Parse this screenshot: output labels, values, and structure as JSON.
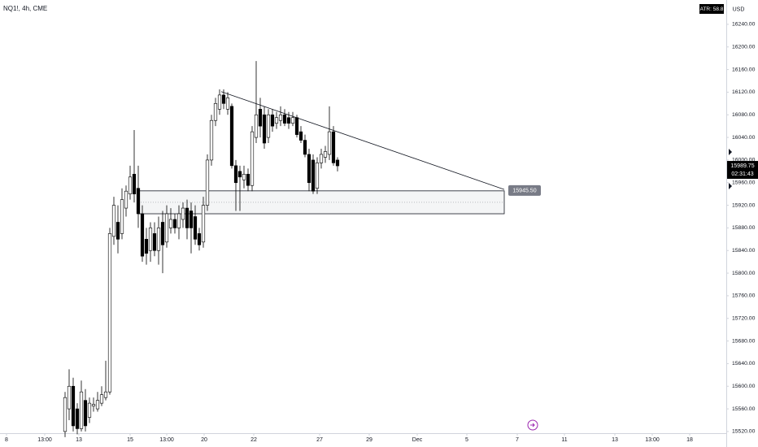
{
  "chart_data": {
    "type": "candlestick",
    "title": "NQ1!, 4h, CME",
    "indicator": "ATR: 58.8",
    "currency": "USD",
    "countdown": "02:31:43",
    "last_price": 15989.75,
    "up_color": "#ffffff",
    "down_color": "#000000",
    "x": [
      16,
      17,
      18,
      19,
      20,
      21,
      22,
      23,
      24,
      25,
      26,
      27,
      28,
      29,
      30,
      31,
      32,
      33,
      34,
      35,
      36,
      37,
      38,
      39,
      40,
      41,
      42,
      43,
      44,
      45,
      46,
      47,
      48,
      49,
      50,
      51,
      52,
      53,
      54,
      55,
      56,
      57,
      58,
      59,
      60,
      61,
      62,
      63,
      64,
      65,
      66,
      67,
      68,
      69,
      70,
      71,
      72,
      73,
      74,
      75,
      76,
      77,
      78,
      79,
      80,
      81,
      82,
      83
    ],
    "open": [
      15520,
      15560,
      15600,
      15560,
      15525,
      15575,
      15545,
      15565,
      15560,
      15570,
      15580,
      15590,
      15865,
      15890,
      15870,
      15915,
      15940,
      15975,
      15950,
      15905,
      15860,
      15840,
      15870,
      15840,
      15890,
      15855,
      15880,
      15895,
      15880,
      15895,
      15915,
      15910,
      15900,
      15870,
      15855,
      15920,
      16000,
      16070,
      16090,
      16115,
      16090,
      16095,
      15990,
      15980,
      15965,
      15975,
      15955,
      16040,
      16090,
      16080,
      16040,
      16080,
      16065,
      16070,
      16080,
      16075,
      16065,
      16075,
      16050,
      16035,
      16010,
      16000,
      15950,
      15995,
      16005,
      16010,
      16050,
      16000
    ],
    "high": [
      15590,
      15630,
      15615,
      15570,
      15610,
      15595,
      15580,
      15580,
      15590,
      15600,
      15645,
      15880,
      15935,
      15920,
      15950,
      15955,
      15990,
      16053,
      15990,
      15920,
      15880,
      15890,
      15890,
      15900,
      15910,
      15920,
      15915,
      15905,
      15920,
      15925,
      15930,
      15925,
      15920,
      15880,
      15935,
      16010,
      16080,
      16110,
      16125,
      16125,
      16120,
      16100,
      16000,
      15990,
      15990,
      15985,
      16060,
      16175,
      16110,
      16095,
      16090,
      16090,
      16085,
      16095,
      16090,
      16085,
      16085,
      16080,
      16060,
      16045,
      16020,
      16010,
      16005,
      16020,
      16025,
      16095,
      16060,
      16005
    ],
    "low": [
      15510,
      15540,
      15520,
      15515,
      15520,
      15520,
      15535,
      15555,
      15555,
      15565,
      15575,
      15585,
      15850,
      15835,
      15860,
      15900,
      15930,
      15925,
      15880,
      15820,
      15815,
      15820,
      15830,
      15815,
      15800,
      15845,
      15870,
      15870,
      15860,
      15880,
      15860,
      15835,
      15850,
      15840,
      15845,
      15910,
      15990,
      16060,
      16080,
      16090,
      16080,
      15985,
      15910,
      15910,
      15950,
      15945,
      15945,
      16030,
      16040,
      16020,
      16030,
      16050,
      16055,
      16060,
      16060,
      16055,
      16060,
      16040,
      16030,
      16005,
      15945,
      15940,
      15940,
      15985,
      15995,
      16000,
      15990,
      15980
    ],
    "close": [
      15580,
      15600,
      15530,
      15525,
      15590,
      15530,
      15570,
      15568,
      15575,
      15585,
      15590,
      15870,
      15920,
      15860,
      15930,
      15945,
      15970,
      15940,
      15905,
      15830,
      15835,
      15880,
      15840,
      15880,
      15850,
      15905,
      15895,
      15880,
      15905,
      15915,
      15880,
      15880,
      15860,
      15850,
      15920,
      16000,
      16070,
      16100,
      16115,
      16100,
      16110,
      15990,
      15960,
      15970,
      15975,
      15955,
      16050,
      16080,
      16060,
      16030,
      16080,
      16060,
      16075,
      16080,
      16065,
      16065,
      16075,
      16045,
      16035,
      16010,
      15960,
      15945,
      15995,
      16010,
      16015,
      16050,
      15995,
      15989.75
    ],
    "trendline": {
      "x": [
        54.4,
        124
      ],
      "y": [
        16121,
        15948
      ]
    },
    "zone": {
      "x": [
        34,
        124
      ],
      "top": {
        "value": 15945.5,
        "label": "15945.50"
      },
      "bottom": 15905
    },
    "xlim": [
      0,
      178.6
    ],
    "ylim": [
      15517,
      16283
    ],
    "xticks": [
      {
        "value": 1.6,
        "label": "8"
      },
      {
        "value": 11,
        "label": "13:00"
      },
      {
        "value": 19.4,
        "label": "13"
      },
      {
        "value": 32,
        "label": "15"
      },
      {
        "value": 41,
        "label": "13:00"
      },
      {
        "value": 50.2,
        "label": "20"
      },
      {
        "value": 62.4,
        "label": "22"
      },
      {
        "value": 78.6,
        "label": "27"
      },
      {
        "value": 90.8,
        "label": "29"
      },
      {
        "value": 102.6,
        "label": "Dec"
      },
      {
        "value": 114.8,
        "label": "5"
      },
      {
        "value": 127.2,
        "label": "7"
      },
      {
        "value": 138.8,
        "label": "11"
      },
      {
        "value": 151.2,
        "label": "13"
      },
      {
        "value": 160.4,
        "label": "13:00"
      },
      {
        "value": 169.6,
        "label": "18"
      }
    ],
    "yticks": [
      {
        "value": 15520,
        "label": "15520.00"
      },
      {
        "value": 15560,
        "label": "15560.00"
      },
      {
        "value": 15600,
        "label": "15600.00"
      },
      {
        "value": 15640,
        "label": "15640.00"
      },
      {
        "value": 15680,
        "label": "15680.00"
      },
      {
        "value": 15720,
        "label": "15720.00"
      },
      {
        "value": 15760,
        "label": "15760.00"
      },
      {
        "value": 15800,
        "label": "15800.00"
      },
      {
        "value": 15840,
        "label": "15840.00"
      },
      {
        "value": 15880,
        "label": "15880.00"
      },
      {
        "value": 15920,
        "label": "15920.00"
      },
      {
        "value": 15960,
        "label": "15960.00"
      },
      {
        "value": 16000,
        "label": "16000.00"
      },
      {
        "value": 16040,
        "label": "16040.00"
      },
      {
        "value": 16080,
        "label": "16080.00"
      },
      {
        "value": 16120,
        "label": "16120.00"
      },
      {
        "value": 16160,
        "label": "16160.00"
      },
      {
        "value": 16200,
        "label": "16200.00"
      },
      {
        "value": 16240,
        "label": "16240.00"
      }
    ]
  }
}
